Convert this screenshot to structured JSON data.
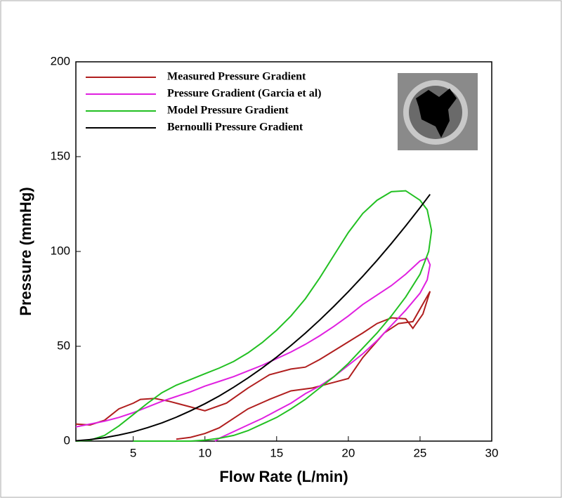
{
  "chart_data": {
    "type": "line",
    "x_label": "Flow Rate (L/min)",
    "y_label": "Pressure (mmHg)",
    "xlim": [
      1,
      30
    ],
    "ylim": [
      0,
      200
    ],
    "xticks": [
      5,
      10,
      15,
      20,
      25,
      30
    ],
    "yticks": [
      0,
      50,
      100,
      150,
      200
    ],
    "series": [
      {
        "name": "Measured Pressure Gradient",
        "color": "#b01e1e",
        "x": [
          1,
          2,
          3,
          4,
          5,
          5.5,
          6.5,
          7.5,
          9,
          10,
          11.5,
          13,
          14.5,
          16,
          17,
          18,
          19.5,
          21,
          22,
          23,
          24,
          24.5,
          25.2,
          25.7,
          24.5,
          23.5,
          22.5,
          21,
          20,
          19,
          17.5,
          16,
          14.5,
          13,
          12,
          11,
          10,
          9,
          8
        ],
        "values": [
          9,
          8.5,
          11,
          17,
          20,
          22,
          22.5,
          21,
          18,
          16,
          20,
          28,
          35,
          38,
          39,
          43,
          50,
          57,
          62,
          65,
          64.5,
          59.5,
          67,
          79,
          63,
          62,
          57,
          44,
          33,
          31,
          28,
          26.5,
          22,
          17,
          12,
          7,
          4,
          2,
          1
        ]
      },
      {
        "name": "Pressure Gradient (Garcia et al)",
        "color": "#e020e0",
        "x": [
          1,
          2,
          3,
          4,
          5,
          6,
          7,
          8,
          9,
          10,
          11,
          12,
          13,
          14,
          15,
          16,
          17,
          18,
          19,
          20,
          21,
          22,
          23,
          24,
          25,
          25.5,
          25.7,
          25.5,
          25,
          24,
          23,
          22,
          21,
          20,
          19,
          18,
          17,
          16,
          15,
          14,
          13,
          12,
          11,
          10.7
        ],
        "values": [
          7.5,
          9,
          10.5,
          12.5,
          15,
          18,
          21,
          23.5,
          26,
          29,
          31.5,
          34,
          37,
          40,
          43.5,
          47,
          51,
          55.5,
          60.5,
          66,
          72,
          77,
          82,
          88,
          95,
          96.5,
          93,
          85,
          78,
          69,
          61,
          53,
          46,
          40,
          34,
          29,
          25,
          20,
          16,
          12,
          8.5,
          5,
          1.5,
          0
        ]
      },
      {
        "name": "Model Pressure Gradient",
        "color": "#22c022",
        "x": [
          1,
          2,
          3,
          4,
          5,
          6,
          7,
          8,
          9,
          10,
          11,
          12,
          13,
          14,
          15,
          16,
          17,
          18,
          19,
          20,
          21,
          22,
          23,
          24,
          25,
          25.5,
          25.8,
          25.6,
          25,
          24,
          23,
          22,
          21,
          20,
          19,
          18,
          17,
          16,
          15,
          14,
          13,
          12,
          11,
          10,
          9,
          5
        ],
        "values": [
          0,
          0.5,
          3,
          8,
          14,
          20,
          25.5,
          29.5,
          32.5,
          35.5,
          38.5,
          42,
          46.5,
          52,
          58.5,
          66,
          75,
          86,
          98,
          110,
          120,
          127,
          131.5,
          132,
          127,
          122,
          111,
          100,
          88,
          76,
          66,
          57,
          49,
          41,
          34,
          28,
          22,
          17,
          12.5,
          9,
          5.5,
          3,
          1.5,
          0.5,
          0,
          0
        ]
      },
      {
        "name": "Bernoulli Pressure Gradient",
        "color": "#000000",
        "x": [
          1,
          2,
          3,
          4,
          5,
          6,
          7,
          8,
          9,
          10,
          11,
          12,
          13,
          14,
          15,
          16,
          17,
          18,
          19,
          20,
          21,
          22,
          23,
          24,
          25,
          25.7
        ],
        "values": [
          0.2,
          0.8,
          1.8,
          3.2,
          4.9,
          7.1,
          9.6,
          12.6,
          16,
          19.7,
          23.8,
          28.4,
          33.3,
          38.6,
          44.3,
          50.4,
          56.9,
          63.8,
          71.1,
          78.8,
          86.9,
          95.3,
          104.2,
          113.5,
          123.1,
          130.1
        ]
      }
    ]
  }
}
